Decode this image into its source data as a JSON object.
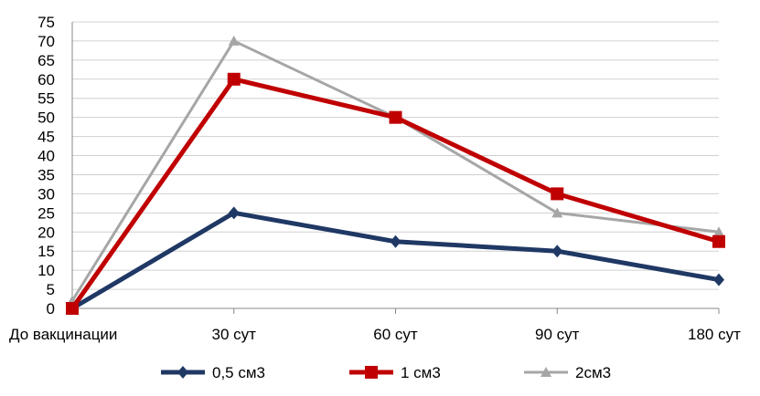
{
  "chart_data": {
    "type": "line",
    "title": "",
    "xlabel": "",
    "ylabel": "",
    "categories": [
      "До вакцинации",
      "30 сут",
      "60 сут",
      "90 сут",
      "180 сут"
    ],
    "ylim": [
      0,
      75
    ],
    "yticks": [
      0,
      5,
      10,
      15,
      20,
      25,
      30,
      35,
      40,
      45,
      50,
      55,
      60,
      65,
      70,
      75
    ],
    "grid": true,
    "legend_position": "bottom",
    "series": [
      {
        "name": "0,5 см3",
        "color": "#1F3864",
        "marker": "diamond",
        "values": [
          0,
          25,
          17.5,
          15,
          7.5
        ]
      },
      {
        "name": "1 см3",
        "color": "#C00000",
        "marker": "square",
        "values": [
          0,
          60,
          50,
          30,
          17.5
        ]
      },
      {
        "name": "2см3",
        "color": "#A6A6A6",
        "marker": "triangle",
        "values": [
          2,
          70,
          50,
          25,
          20
        ]
      }
    ]
  }
}
